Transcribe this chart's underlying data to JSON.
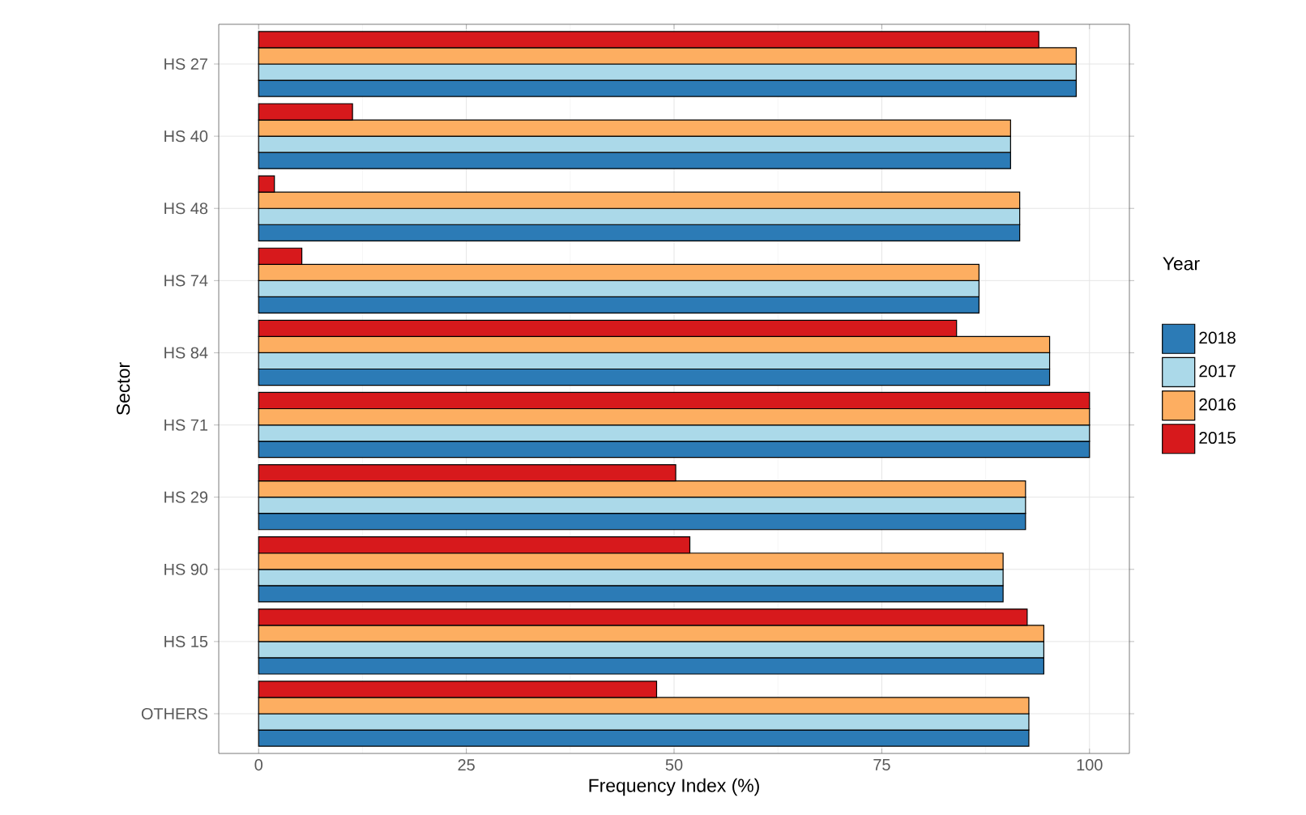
{
  "chart_data": {
    "type": "bar",
    "orientation": "horizontal",
    "xlabel": "Frequency Index (%)",
    "ylabel": "Sector",
    "legend_title": "Year",
    "legend": "right",
    "grid": true,
    "categories": [
      "HS 27",
      "HS 40",
      "HS 48",
      "HS 74",
      "HS 84",
      "HS 71",
      "HS 29",
      "HS 90",
      "HS 15",
      "OTHERS"
    ],
    "xlim": [
      -4.8,
      104.8
    ],
    "xticks": [
      0,
      25,
      50,
      75,
      100
    ],
    "series": [
      {
        "name": "2018",
        "color": "#2c7bb6",
        "values": [
          98.4,
          90.5,
          91.6,
          86.7,
          95.2,
          100,
          92.3,
          89.6,
          94.5,
          92.7
        ]
      },
      {
        "name": "2017",
        "color": "#abd9e9",
        "values": [
          98.4,
          90.5,
          91.6,
          86.7,
          95.2,
          100,
          92.3,
          89.6,
          94.5,
          92.7
        ]
      },
      {
        "name": "2016",
        "color": "#fdae61",
        "values": [
          98.4,
          90.5,
          91.6,
          86.7,
          95.2,
          100,
          92.3,
          89.6,
          94.5,
          92.7
        ]
      },
      {
        "name": "2015",
        "color": "#d7191c",
        "values": [
          93.9,
          11.3,
          1.9,
          5.2,
          84.0,
          100,
          50.2,
          51.9,
          92.5,
          47.9
        ]
      }
    ]
  }
}
